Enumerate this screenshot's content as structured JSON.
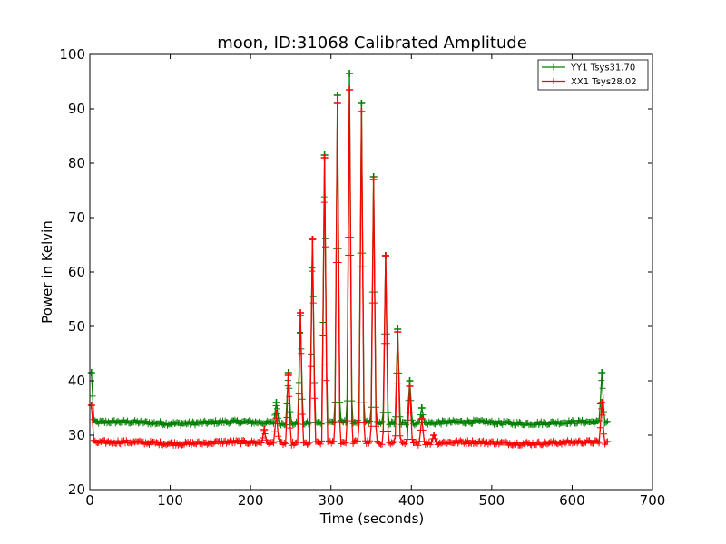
{
  "chart_data": {
    "type": "line",
    "title": "moon, ID:31068 Calibrated Amplitude",
    "xlabel": "Time (seconds)",
    "ylabel": "Power in Kelvin",
    "xlim": [
      0,
      700
    ],
    "ylim": [
      20,
      100
    ],
    "xticks": [
      "0",
      "100",
      "200",
      "300",
      "400",
      "500",
      "600",
      "700"
    ],
    "yticks": [
      "20",
      "30",
      "40",
      "50",
      "60",
      "70",
      "80",
      "90",
      "100"
    ],
    "grid": false,
    "legend_position": "top-right",
    "series": [
      {
        "name": "YY1 Tsys31.70",
        "color": "#008000",
        "baseline": 32.3,
        "x_range": [
          2,
          645
        ],
        "peaks": [
          {
            "x": 2,
            "y": 41.5
          },
          {
            "x": 232,
            "y": 36
          },
          {
            "x": 247,
            "y": 41.5
          },
          {
            "x": 262,
            "y": 52
          },
          {
            "x": 277,
            "y": 66
          },
          {
            "x": 292,
            "y": 81.5
          },
          {
            "x": 308,
            "y": 92.5
          },
          {
            "x": 323,
            "y": 96.5
          },
          {
            "x": 338,
            "y": 91
          },
          {
            "x": 353,
            "y": 77.5
          },
          {
            "x": 368,
            "y": 63
          },
          {
            "x": 383,
            "y": 49.5
          },
          {
            "x": 398,
            "y": 40
          },
          {
            "x": 413,
            "y": 35
          },
          {
            "x": 637,
            "y": 41.5
          }
        ]
      },
      {
        "name": "XX1 Tsys28.02",
        "color": "#ff0000",
        "baseline": 28.6,
        "x_range": [
          2,
          645
        ],
        "peaks": [
          {
            "x": 2,
            "y": 35.5
          },
          {
            "x": 217,
            "y": 31
          },
          {
            "x": 232,
            "y": 34
          },
          {
            "x": 247,
            "y": 41
          },
          {
            "x": 262,
            "y": 52.5
          },
          {
            "x": 277,
            "y": 66
          },
          {
            "x": 292,
            "y": 81
          },
          {
            "x": 308,
            "y": 91
          },
          {
            "x": 323,
            "y": 93.5
          },
          {
            "x": 338,
            "y": 89.5
          },
          {
            "x": 353,
            "y": 77
          },
          {
            "x": 368,
            "y": 63
          },
          {
            "x": 383,
            "y": 49
          },
          {
            "x": 398,
            "y": 39
          },
          {
            "x": 413,
            "y": 33
          },
          {
            "x": 428,
            "y": 30
          },
          {
            "x": 637,
            "y": 36
          }
        ]
      }
    ]
  }
}
